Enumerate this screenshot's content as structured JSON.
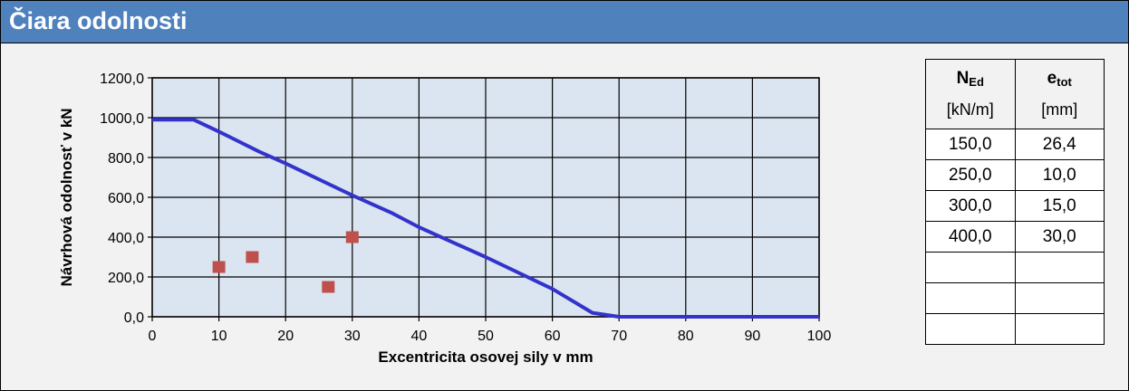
{
  "header": {
    "title": "Čiara odolnosti"
  },
  "chart_data": {
    "type": "line+scatter",
    "xlabel": "Excentricita osovej sily  v mm",
    "ylabel": "Návrhová  odolnosť  v kN",
    "xlim": [
      0,
      100
    ],
    "ylim": [
      0,
      1200
    ],
    "x_ticks": [
      "0",
      "10",
      "20",
      "30",
      "40",
      "50",
      "60",
      "70",
      "80",
      "90",
      "100"
    ],
    "y_ticks": [
      "0,0",
      "200,0",
      "400,0",
      "600,0",
      "800,0",
      "1000,0",
      "1200,0"
    ],
    "grid": true,
    "series": [
      {
        "kind": "line",
        "color": "#3333cc",
        "x": [
          0,
          6.2,
          10,
          16,
          20,
          30,
          36,
          40,
          50,
          60,
          66,
          70,
          100
        ],
        "y": [
          990,
          990,
          930,
          830,
          770,
          610,
          520,
          450,
          300,
          140,
          20,
          0,
          0
        ]
      },
      {
        "kind": "scatter",
        "color": "#c0504d",
        "x": [
          26.4,
          10.0,
          15.0,
          30.0
        ],
        "y": [
          150,
          250,
          300,
          400
        ]
      }
    ]
  },
  "table": {
    "col1_name": "N",
    "col1_sub": "Ed",
    "col1_unit": "[kN/m]",
    "col2_name": "e",
    "col2_sub": "tot",
    "col2_unit": "[mm]",
    "rows": [
      [
        "150,0",
        "26,4"
      ],
      [
        "250,0",
        "10,0"
      ],
      [
        "300,0",
        "15,0"
      ],
      [
        "400,0",
        "30,0"
      ],
      [
        "",
        ""
      ],
      [
        "",
        ""
      ],
      [
        "",
        ""
      ]
    ]
  }
}
